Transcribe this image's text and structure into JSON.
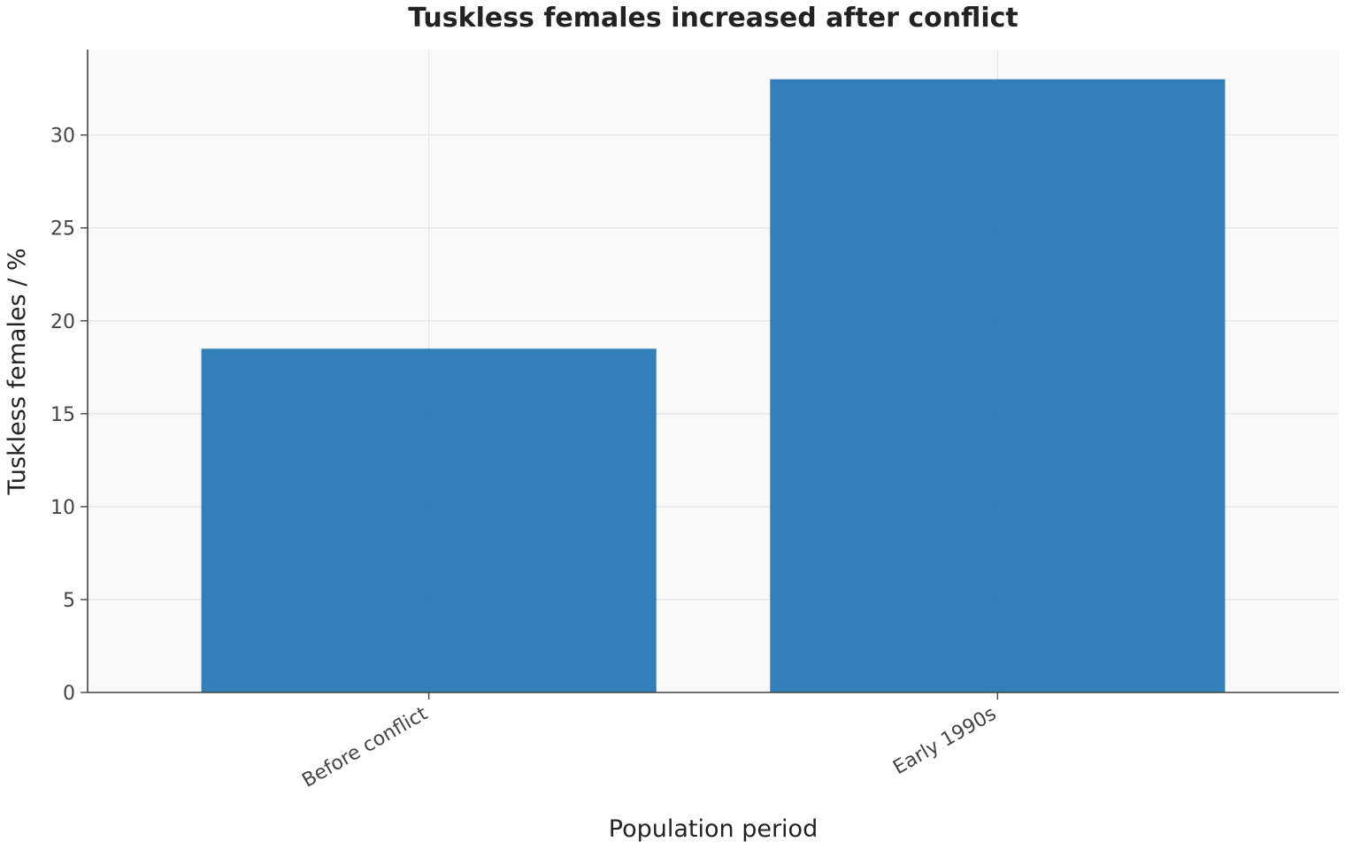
{
  "chart_data": {
    "type": "bar",
    "title": "Tuskless females increased after conflict",
    "xlabel": "Population period",
    "ylabel": "Tuskless females / %",
    "categories": [
      "Before conflict",
      "Early 1990s"
    ],
    "values": [
      18.5,
      33
    ],
    "ylim": [
      0,
      34.6
    ],
    "yticks": [
      0,
      5,
      10,
      15,
      20,
      25,
      30
    ],
    "grid": true,
    "bar_color": "#2878b5",
    "plot_background": "#f9f9f9"
  }
}
